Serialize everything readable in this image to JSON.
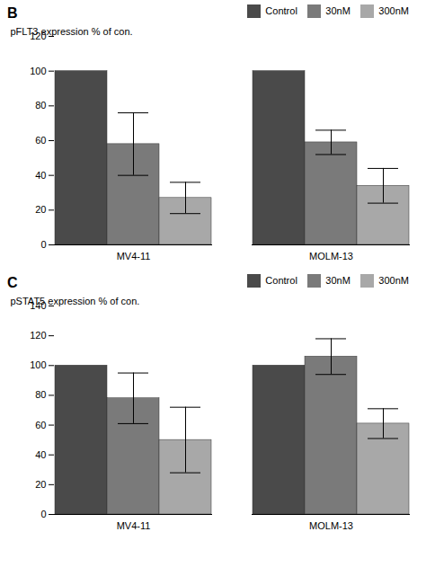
{
  "chart_data": [
    {
      "type": "bar",
      "title": "B",
      "categories": [
        "MV4-11",
        "MOLM-13"
      ],
      "series": [
        {
          "name": "Control",
          "color": "#4a4a4a",
          "values": [
            100,
            100
          ],
          "errors": [
            0,
            0
          ]
        },
        {
          "name": "30nM",
          "color": "#7a7a7a",
          "values": [
            58,
            59
          ],
          "errors": [
            18,
            7
          ]
        },
        {
          "name": "300nM",
          "color": "#a8a8a8",
          "values": [
            27,
            34
          ],
          "errors": [
            9,
            10
          ]
        }
      ],
      "ylabel": "pFLT3 expression % of con.",
      "ylim": [
        0,
        120
      ],
      "yticks": [
        0,
        20,
        40,
        60,
        80,
        100,
        120
      ],
      "legend": "upper right"
    },
    {
      "type": "bar",
      "title": "C",
      "categories": [
        "MV4-11",
        "MOLM-13"
      ],
      "series": [
        {
          "name": "Control",
          "color": "#4a4a4a",
          "values": [
            100,
            100
          ],
          "errors": [
            0,
            0
          ]
        },
        {
          "name": "30nM",
          "color": "#7a7a7a",
          "values": [
            78,
            106
          ],
          "errors": [
            17,
            12
          ]
        },
        {
          "name": "300nM",
          "color": "#a8a8a8",
          "values": [
            50,
            61
          ],
          "errors": [
            22,
            10
          ]
        }
      ],
      "ylabel": "pSTAT5 expression % of con.",
      "ylim": [
        0,
        140
      ],
      "yticks": [
        0,
        20,
        40,
        60,
        80,
        100,
        120,
        140
      ],
      "legend": "upper right"
    }
  ]
}
